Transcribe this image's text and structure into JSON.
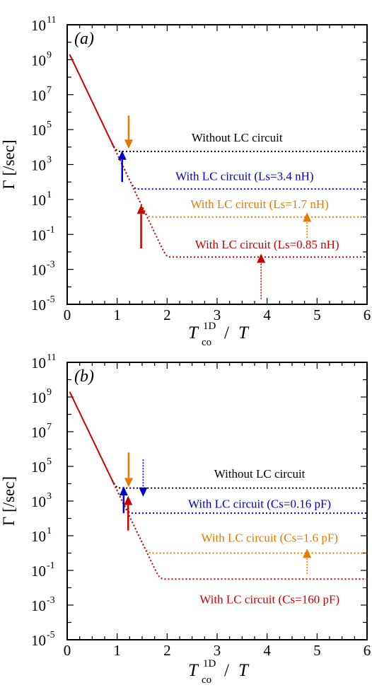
{
  "chart_data": [
    {
      "type": "line",
      "panel_label": "(a)",
      "xlabel": "T",
      "xlabel_sup": "1D",
      "xlabel_sub": "co",
      "xlabel_rest": "/ T",
      "ylabel": "Γ [/sec]",
      "xlim": [
        0,
        6
      ],
      "ylim_log10": [
        -5,
        11
      ],
      "yscale": "log",
      "x_ticks": [
        "0",
        "1",
        "2",
        "3",
        "4",
        "5",
        "6"
      ],
      "y_ticks": [
        {
          "exp": "11",
          "v": 11
        },
        {
          "exp": "9",
          "v": 9
        },
        {
          "exp": "7",
          "v": 7
        },
        {
          "exp": "5",
          "v": 5
        },
        {
          "exp": "3",
          "v": 3
        },
        {
          "exp": "1",
          "v": 1
        },
        {
          "exp": "-1",
          "v": -1
        },
        {
          "exp": "-3",
          "v": -3
        },
        {
          "exp": "-5",
          "v": -5
        }
      ],
      "series": [
        {
          "name": "Without LC circuit",
          "color": "#000000",
          "plateau_log10": 3.75,
          "knee": 0.95,
          "label_pos": [
            3.4,
            4.55
          ]
        },
        {
          "name": "With LC circuit (Ls=3.4 nH)",
          "color": "#0000cc",
          "plateau_log10": 1.6,
          "knee": 1.35,
          "label_pos": [
            3.55,
            2.35
          ]
        },
        {
          "name": "With LC circuit (Ls=1.7 nH)",
          "color": "#e87800",
          "plateau_log10": 0.0,
          "knee": 1.6,
          "label_pos": [
            3.85,
            0.75
          ]
        },
        {
          "name": "With LC circuit (Ls=0.85 nH)",
          "color": "#cc0000",
          "plateau_log10": -2.3,
          "knee": 2.1,
          "label_pos": [
            4.0,
            -1.55
          ]
        }
      ],
      "arrows": [
        {
          "color": "#0000cc",
          "x": 1.1,
          "y_from": 2.0,
          "y_to": 3.8,
          "style": "solid"
        },
        {
          "color": "#e87800",
          "x": 1.23,
          "y_from": 5.8,
          "y_to": 3.9,
          "style": "solid"
        },
        {
          "color": "#cc0000",
          "x": 1.48,
          "y_from": -1.8,
          "y_to": 0.7,
          "style": "solid"
        },
        {
          "color": "#e87800",
          "x": 4.8,
          "y_from": -1.2,
          "y_to": 0.25,
          "style": "dotted"
        },
        {
          "color": "#cc0000",
          "x": 3.88,
          "y_from": -4.7,
          "y_to": -2.1,
          "style": "dotted"
        }
      ]
    },
    {
      "type": "line",
      "panel_label": "(b)",
      "xlabel": "T",
      "xlabel_sup": "1D",
      "xlabel_sub": "co",
      "xlabel_rest": "/ T",
      "ylabel": "Γ [/sec]",
      "xlim": [
        0,
        6
      ],
      "ylim_log10": [
        -5,
        11
      ],
      "yscale": "log",
      "x_ticks": [
        "0",
        "1",
        "2",
        "3",
        "4",
        "5",
        "6"
      ],
      "y_ticks": [
        {
          "exp": "11",
          "v": 11
        },
        {
          "exp": "9",
          "v": 9
        },
        {
          "exp": "7",
          "v": 7
        },
        {
          "exp": "5",
          "v": 5
        },
        {
          "exp": "3",
          "v": 3
        },
        {
          "exp": "1",
          "v": 1
        },
        {
          "exp": "-1",
          "v": -1
        },
        {
          "exp": "-3",
          "v": -3
        },
        {
          "exp": "-5",
          "v": -5
        }
      ],
      "series": [
        {
          "name": "Without LC circuit",
          "color": "#000000",
          "plateau_log10": 3.75,
          "knee": 0.95,
          "label_pos": [
            3.85,
            4.6
          ]
        },
        {
          "name": "With LC circuit (Cs=0.16 pF)",
          "color": "#0000cc",
          "plateau_log10": 2.3,
          "knee": 1.5,
          "label_pos": [
            3.85,
            2.85
          ]
        },
        {
          "name": "With LC circuit (Cs=1.6 pF)",
          "color": "#e87800",
          "plateau_log10": 0.0,
          "knee": 1.65,
          "label_pos": [
            4.05,
            0.9
          ]
        },
        {
          "name": "With LC circuit (Cs=160 pF)",
          "color": "#cc0000",
          "plateau_log10": -1.5,
          "knee": 2.7,
          "label_pos": [
            4.05,
            -2.65
          ]
        }
      ],
      "arrows": [
        {
          "color": "#0000cc",
          "x": 1.13,
          "y_from": 2.3,
          "y_to": 3.85,
          "style": "solid"
        },
        {
          "color": "#e87800",
          "x": 1.23,
          "y_from": 5.8,
          "y_to": 3.8,
          "style": "solid"
        },
        {
          "color": "#cc0000",
          "x": 1.22,
          "y_from": 1.3,
          "y_to": 3.3,
          "style": "solid"
        },
        {
          "color": "#0000cc",
          "x": 1.52,
          "y_from": 5.4,
          "y_to": 3.25,
          "style": "dotted"
        },
        {
          "color": "#e87800",
          "x": 4.8,
          "y_from": -1.2,
          "y_to": 0.25,
          "style": "dotted"
        }
      ]
    }
  ]
}
